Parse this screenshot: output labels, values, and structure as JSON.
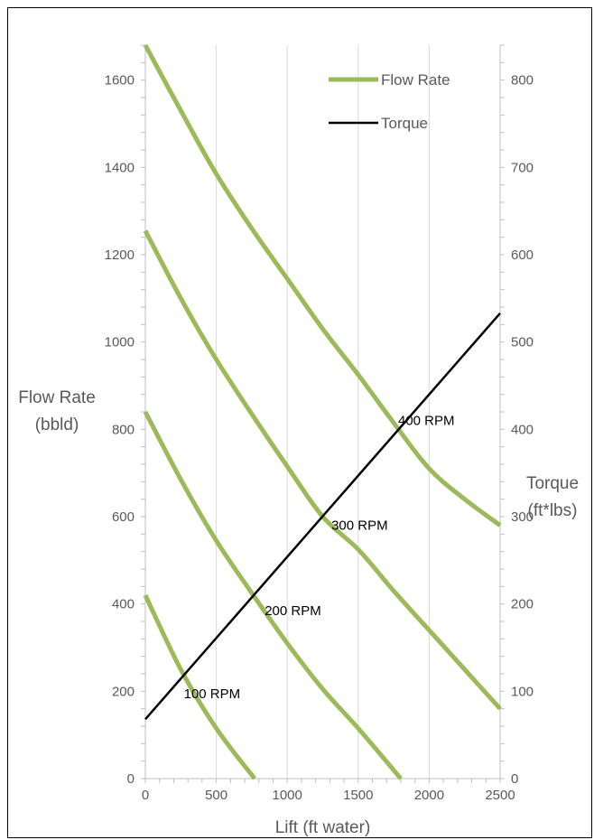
{
  "chart_data": {
    "type": "line",
    "xlabel": "Lift (ft water)",
    "ylabel_left": [
      "Flow Rate",
      "(bbld)"
    ],
    "ylabel_right": [
      "Torque",
      "(ft*lbs)"
    ],
    "xlim": [
      0,
      2500
    ],
    "ylim_left": [
      0,
      1680
    ],
    "ylim_right": [
      0,
      840
    ],
    "x_ticks": [
      0,
      500,
      1000,
      1500,
      2000,
      2500
    ],
    "y_left_ticks": [
      0,
      200,
      400,
      600,
      800,
      1000,
      1200,
      1400,
      1600
    ],
    "y_right_ticks": [
      0,
      100,
      200,
      300,
      400,
      500,
      600,
      700,
      800
    ],
    "grid": {
      "vertical": true,
      "horizontal": false
    },
    "legend": {
      "placement": "top-right",
      "entries": [
        {
          "name": "Flow Rate",
          "color": "#9bbb59"
        },
        {
          "name": "Torque",
          "color": "#000000"
        }
      ]
    },
    "colors": {
      "flow": "#9bbb59",
      "torque": "#000000",
      "grid": "#d9d9d9",
      "axis": "#bfbfbf"
    },
    "series": [
      {
        "kind": "flow",
        "axis": "left",
        "x": [
          0,
          250,
          500,
          750,
          1000,
          1250,
          1500,
          1750,
          2000,
          2250,
          2500
        ],
        "y": [
          1680,
          1530,
          1385,
          1260,
          1145,
          1030,
          925,
          815,
          710,
          640,
          580
        ]
      },
      {
        "kind": "flow",
        "axis": "left",
        "x": [
          0,
          250,
          500,
          750,
          1000,
          1250,
          1500,
          1750,
          2000,
          2250,
          2500
        ],
        "y": [
          1255,
          1100,
          960,
          835,
          715,
          600,
          525,
          430,
          340,
          250,
          160
        ]
      },
      {
        "kind": "flow",
        "axis": "left",
        "x": [
          0,
          250,
          500,
          750,
          1000,
          1250,
          1500,
          1800
        ],
        "y": [
          840,
          685,
          545,
          425,
          310,
          205,
          115,
          0
        ]
      },
      {
        "kind": "flow",
        "axis": "left",
        "x": [
          0,
          250,
          500,
          770
        ],
        "y": [
          420,
          250,
          115,
          0
        ]
      },
      {
        "kind": "torque",
        "axis": "right",
        "x": [
          0,
          2500
        ],
        "y": [
          68,
          533
        ]
      }
    ],
    "annotations": [
      {
        "text": "400 RPM",
        "x": 1980,
        "y": 820
      },
      {
        "text": "300 RPM",
        "x": 1510,
        "y": 580
      },
      {
        "text": "200 RPM",
        "x": 1040,
        "y": 385
      },
      {
        "text": "100 RPM",
        "x": 470,
        "y": 195
      }
    ]
  }
}
